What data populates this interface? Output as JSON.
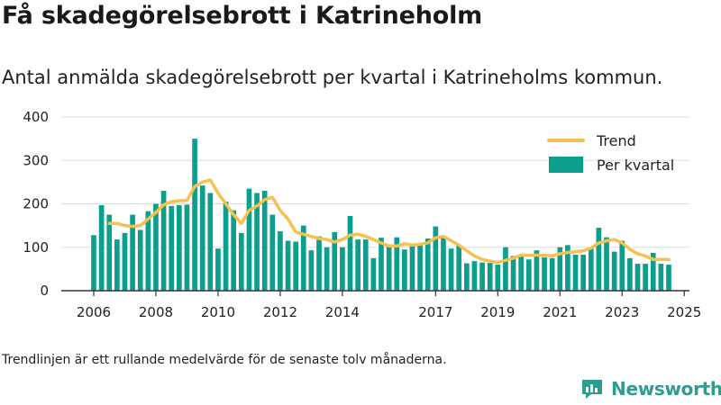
{
  "header": {
    "title": "Få skadegörelsebrott i Katrineholm",
    "subtitle": "Antal anmälda skadegörelsebrott per kvartal i Katrineholms kommun."
  },
  "footnote": "Trendlinjen är ett rullande medelvärde för de senaste tolv månaderna.",
  "brand": {
    "name": "Newsworthy",
    "icon": "bar-chart-logo-icon",
    "color": "#2e9c8f"
  },
  "colors": {
    "bars": "#0e9e8e",
    "trend": "#f5c150",
    "grid": "#dddddd",
    "axis": "#333333"
  },
  "chart_data": {
    "type": "bar",
    "title": "Få skadegörelsebrott i Katrineholm",
    "ylim": [
      0,
      400
    ],
    "yticks": [
      0,
      100,
      200,
      300,
      400
    ],
    "xticks": [
      "2006",
      "2008",
      "2010",
      "2012",
      "2014",
      "2017",
      "2019",
      "2021",
      "2023",
      "2025"
    ],
    "legend": {
      "position": "top-right",
      "trend_label": "Trend",
      "bars_label": "Per kvartal"
    },
    "grid": true,
    "start": "2006Q1",
    "series": [
      {
        "name": "Per kvartal",
        "type": "bar",
        "values": [
          128,
          197,
          175,
          118,
          133,
          175,
          140,
          183,
          200,
          230,
          195,
          197,
          198,
          350,
          242,
          225,
          97,
          205,
          185,
          133,
          235,
          225,
          230,
          175,
          137,
          115,
          113,
          150,
          93,
          125,
          100,
          135,
          100,
          172,
          118,
          118,
          75,
          122,
          102,
          123,
          95,
          105,
          108,
          120,
          148,
          123,
          97,
          105,
          63,
          68,
          65,
          64,
          60,
          100,
          80,
          80,
          72,
          93,
          77,
          75,
          100,
          105,
          83,
          83,
          100,
          145,
          123,
          90,
          115,
          75,
          62,
          62,
          87,
          62,
          60
        ],
        "estimated": true
      },
      {
        "name": "Trend",
        "type": "line",
        "values": [
          null,
          null,
          155,
          155,
          150,
          148,
          150,
          165,
          180,
          198,
          205,
          207,
          208,
          240,
          250,
          255,
          225,
          200,
          175,
          155,
          185,
          195,
          210,
          215,
          185,
          165,
          135,
          130,
          125,
          120,
          118,
          112,
          118,
          128,
          130,
          125,
          118,
          110,
          103,
          103,
          108,
          105,
          107,
          110,
          122,
          125,
          115,
          105,
          92,
          80,
          72,
          68,
          65,
          70,
          75,
          82,
          82,
          82,
          82,
          80,
          85,
          88,
          90,
          92,
          98,
          110,
          115,
          118,
          110,
          95,
          85,
          80,
          72,
          72,
          72
        ],
        "estimated": true
      }
    ]
  }
}
